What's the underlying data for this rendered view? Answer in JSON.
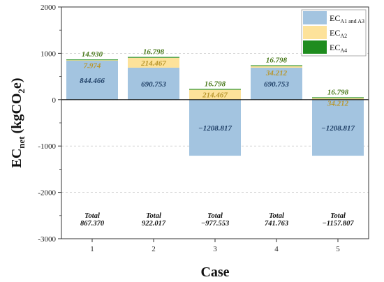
{
  "chart_data": {
    "type": "bar",
    "stacked": true,
    "xlabel": "Case",
    "ylabel": "EC",
    "ylabel_subscript": "net",
    "ylabel_unit": "(kgCO",
    "ylabel_unit_subscript": "2",
    "ylabel_unit_tail": "e)",
    "ylim": [
      -3000,
      2000
    ],
    "yticks": [
      -3000,
      -2000,
      -1000,
      0,
      1000,
      2000
    ],
    "yticks_labels": [
      "-3000",
      "-2000",
      "-1000",
      "0",
      "1000",
      "2000"
    ],
    "categories": [
      "1",
      "2",
      "3",
      "4",
      "5"
    ],
    "legend_position": "top-right",
    "grid": true,
    "series": [
      {
        "name": "EC",
        "name_subscript": "A1 and A3",
        "color": "#a3c4e0",
        "label_color": "#1f3f66",
        "values": [
          844.466,
          690.753,
          -1208.817,
          690.753,
          -1208.817
        ],
        "labels": [
          "844.466",
          "690.753",
          "−1208.817",
          "690.753",
          "−1208.817"
        ]
      },
      {
        "name": "EC",
        "name_subscript": "A2",
        "color": "#fde29a",
        "label_color": "#b8962c",
        "values": [
          7.974,
          214.467,
          214.467,
          34.212,
          34.212
        ],
        "labels": [
          "7.974",
          "214.467",
          "214.467",
          "34.212",
          "34.212"
        ]
      },
      {
        "name": "EC",
        "name_subscript": "A4",
        "color": "#1e8c1e",
        "label_color": "#4a7a1c",
        "values": [
          14.93,
          16.798,
          16.798,
          16.798,
          16.798
        ],
        "labels": [
          "14.930",
          "16.798",
          "16.798",
          "16.798",
          "16.798"
        ]
      }
    ],
    "totals": {
      "label": "Total",
      "values": [
        867.37,
        922.017,
        -977.553,
        741.763,
        -1157.807
      ],
      "labels": [
        "867.370",
        "922.017",
        "−977.553",
        "741.763",
        "−1157.807"
      ]
    }
  }
}
